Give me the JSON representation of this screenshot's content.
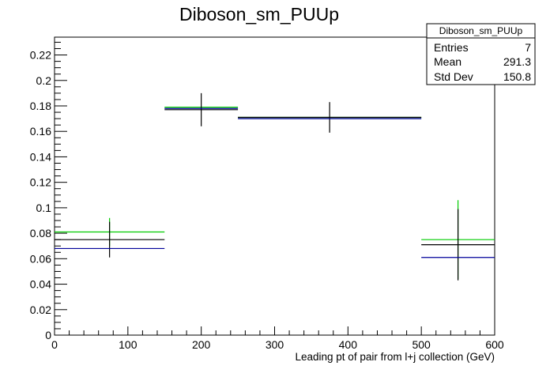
{
  "chart_data": {
    "type": "scatter",
    "title": "Diboson_sm_PUUp",
    "xlabel": "Leading pt of pair from l+j collection (GeV)",
    "ylabel": "",
    "xlim": [
      0,
      600
    ],
    "ylim": [
      0,
      0.234
    ],
    "x_ticks": [
      0,
      100,
      200,
      300,
      400,
      500,
      600
    ],
    "y_ticks": [
      0,
      0.02,
      0.04,
      0.06,
      0.08,
      0.1,
      0.12,
      0.14,
      0.16,
      0.18,
      0.2,
      0.22
    ],
    "x_tick_labels": [
      "0",
      "100",
      "200",
      "300",
      "400",
      "500",
      "600"
    ],
    "y_tick_labels": [
      "0",
      "0.02",
      "0.04",
      "0.06",
      "0.08",
      "0.1",
      "0.12",
      "0.14",
      "0.16",
      "0.18",
      "0.2",
      "0.22"
    ],
    "grid": false,
    "stats_box": {
      "name": "Diboson_sm_PUUp",
      "rows": [
        {
          "label": "Entries",
          "value": "7"
        },
        {
          "label": "Mean",
          "value": "291.3"
        },
        {
          "label": "Std Dev",
          "value": "150.8"
        }
      ]
    },
    "bins": [
      {
        "x_low": 0,
        "x_high": 150,
        "x_center": 75
      },
      {
        "x_low": 150,
        "x_high": 250,
        "x_center": 200
      },
      {
        "x_low": 250,
        "x_high": 500,
        "x_center": 375
      },
      {
        "x_low": 500,
        "x_high": 600,
        "x_center": 550
      }
    ],
    "series": [
      {
        "color": "#00cc00",
        "values": [
          0.081,
          0.179,
          0.171,
          0.075
        ],
        "errors": [
          0.011,
          0.0,
          0.0,
          0.031
        ]
      },
      {
        "color": "#000000",
        "values": [
          0.075,
          0.177,
          0.171,
          0.071
        ],
        "errors": [
          0.014,
          0.013,
          0.012,
          0.028
        ]
      },
      {
        "color": "#000099",
        "values": [
          0.068,
          0.178,
          0.17,
          0.061
        ],
        "errors": [
          0.0,
          0.0,
          0.0,
          0.0
        ]
      }
    ]
  }
}
